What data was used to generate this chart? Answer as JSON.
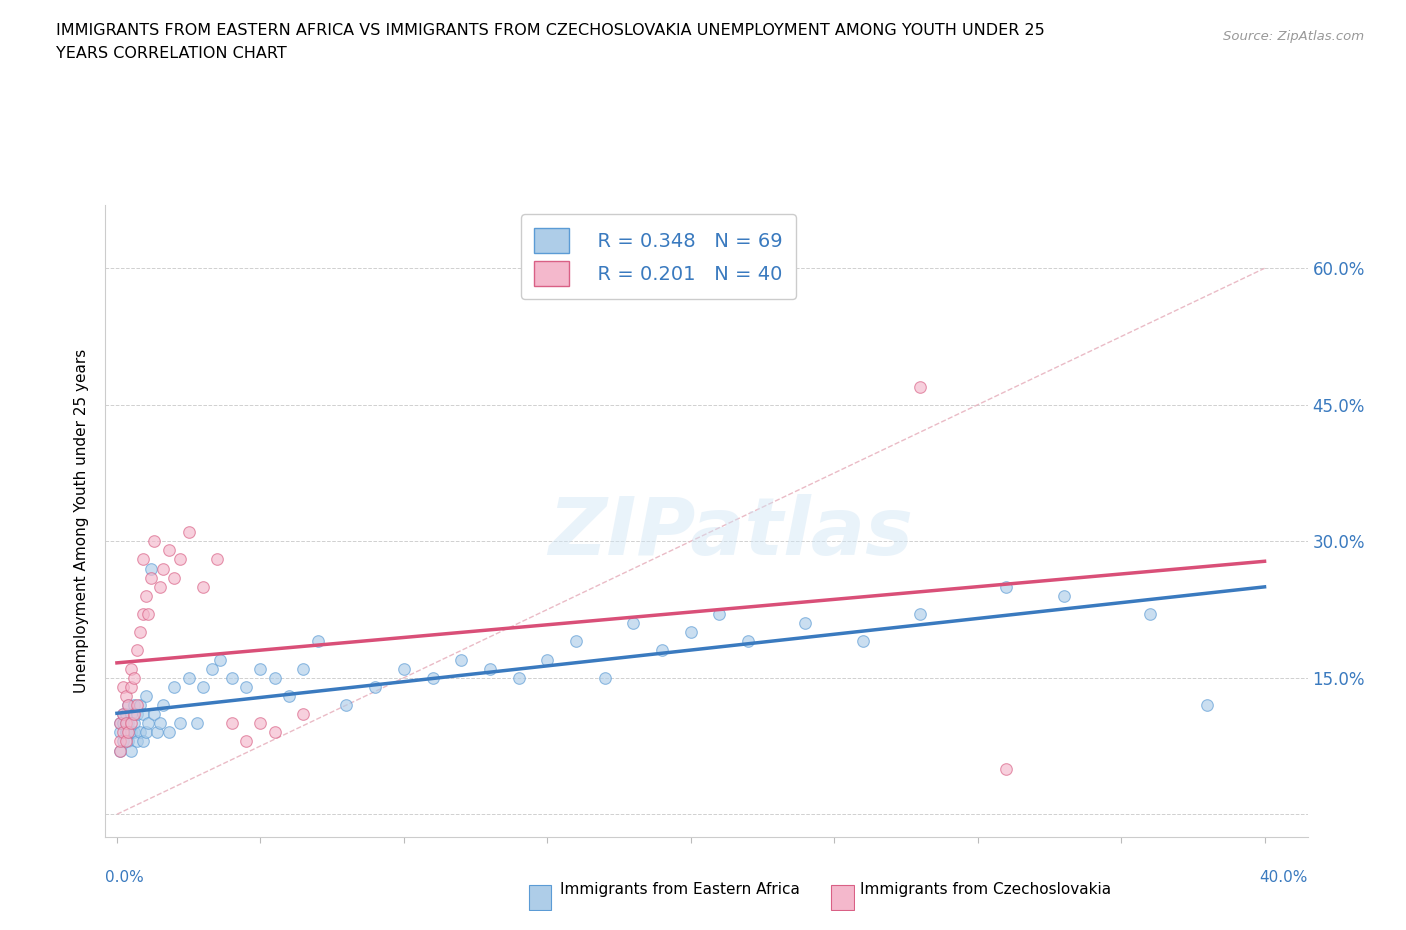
{
  "title_line1": "IMMIGRANTS FROM EASTERN AFRICA VS IMMIGRANTS FROM CZECHOSLOVAKIA UNEMPLOYMENT AMONG YOUTH UNDER 25",
  "title_line2": "YEARS CORRELATION CHART",
  "source_text": "Source: ZipAtlas.com",
  "ylabel": "Unemployment Among Youth under 25 years",
  "y_ticks": [
    0.0,
    0.15,
    0.3,
    0.45,
    0.6
  ],
  "y_tick_labels": [
    "",
    "15.0%",
    "30.0%",
    "45.0%",
    "60.0%"
  ],
  "x_ticks": [
    0.0,
    0.05,
    0.1,
    0.15,
    0.2,
    0.25,
    0.3,
    0.35,
    0.4
  ],
  "x_lim": [
    -0.004,
    0.415
  ],
  "y_lim": [
    -0.025,
    0.67
  ],
  "legend_r1": "R = 0.348",
  "legend_n1": "N = 69",
  "legend_r2": "R = 0.201",
  "legend_n2": "N = 40",
  "color_blue_fill": "#aecde8",
  "color_blue_edge": "#5b9bd5",
  "color_blue_line": "#3a7abf",
  "color_pink_fill": "#f4b8cc",
  "color_pink_edge": "#d96085",
  "color_pink_line": "#d94f78",
  "color_diag": "#e8b4c0",
  "watermark": "ZIPatlas",
  "label1": "Immigrants from Eastern Africa",
  "label2": "Immigrants from Czechoslovakia",
  "series1_x": [
    0.001,
    0.001,
    0.001,
    0.002,
    0.002,
    0.002,
    0.003,
    0.003,
    0.003,
    0.004,
    0.004,
    0.004,
    0.005,
    0.005,
    0.005,
    0.006,
    0.006,
    0.006,
    0.007,
    0.007,
    0.008,
    0.008,
    0.009,
    0.009,
    0.01,
    0.01,
    0.011,
    0.012,
    0.013,
    0.014,
    0.015,
    0.016,
    0.018,
    0.02,
    0.022,
    0.025,
    0.028,
    0.03,
    0.033,
    0.036,
    0.04,
    0.045,
    0.05,
    0.055,
    0.06,
    0.065,
    0.07,
    0.08,
    0.09,
    0.1,
    0.11,
    0.12,
    0.13,
    0.14,
    0.15,
    0.16,
    0.17,
    0.18,
    0.19,
    0.2,
    0.21,
    0.22,
    0.24,
    0.26,
    0.28,
    0.31,
    0.33,
    0.36,
    0.38
  ],
  "series1_y": [
    0.07,
    0.09,
    0.1,
    0.08,
    0.1,
    0.11,
    0.09,
    0.1,
    0.11,
    0.08,
    0.1,
    0.12,
    0.07,
    0.09,
    0.11,
    0.09,
    0.1,
    0.12,
    0.08,
    0.11,
    0.09,
    0.12,
    0.08,
    0.11,
    0.09,
    0.13,
    0.1,
    0.27,
    0.11,
    0.09,
    0.1,
    0.12,
    0.09,
    0.14,
    0.1,
    0.15,
    0.1,
    0.14,
    0.16,
    0.17,
    0.15,
    0.14,
    0.16,
    0.15,
    0.13,
    0.16,
    0.19,
    0.12,
    0.14,
    0.16,
    0.15,
    0.17,
    0.16,
    0.15,
    0.17,
    0.19,
    0.15,
    0.21,
    0.18,
    0.2,
    0.22,
    0.19,
    0.21,
    0.19,
    0.22,
    0.25,
    0.24,
    0.22,
    0.12
  ],
  "series2_x": [
    0.001,
    0.001,
    0.001,
    0.002,
    0.002,
    0.002,
    0.003,
    0.003,
    0.003,
    0.004,
    0.004,
    0.005,
    0.005,
    0.005,
    0.006,
    0.006,
    0.007,
    0.007,
    0.008,
    0.009,
    0.009,
    0.01,
    0.011,
    0.012,
    0.013,
    0.015,
    0.016,
    0.018,
    0.02,
    0.022,
    0.025,
    0.03,
    0.035,
    0.04,
    0.045,
    0.05,
    0.055,
    0.065,
    0.28,
    0.31
  ],
  "series2_y": [
    0.07,
    0.08,
    0.1,
    0.09,
    0.11,
    0.14,
    0.08,
    0.1,
    0.13,
    0.09,
    0.12,
    0.1,
    0.14,
    0.16,
    0.11,
    0.15,
    0.12,
    0.18,
    0.2,
    0.22,
    0.28,
    0.24,
    0.22,
    0.26,
    0.3,
    0.25,
    0.27,
    0.29,
    0.26,
    0.28,
    0.31,
    0.25,
    0.28,
    0.1,
    0.08,
    0.1,
    0.09,
    0.11,
    0.47,
    0.05
  ]
}
